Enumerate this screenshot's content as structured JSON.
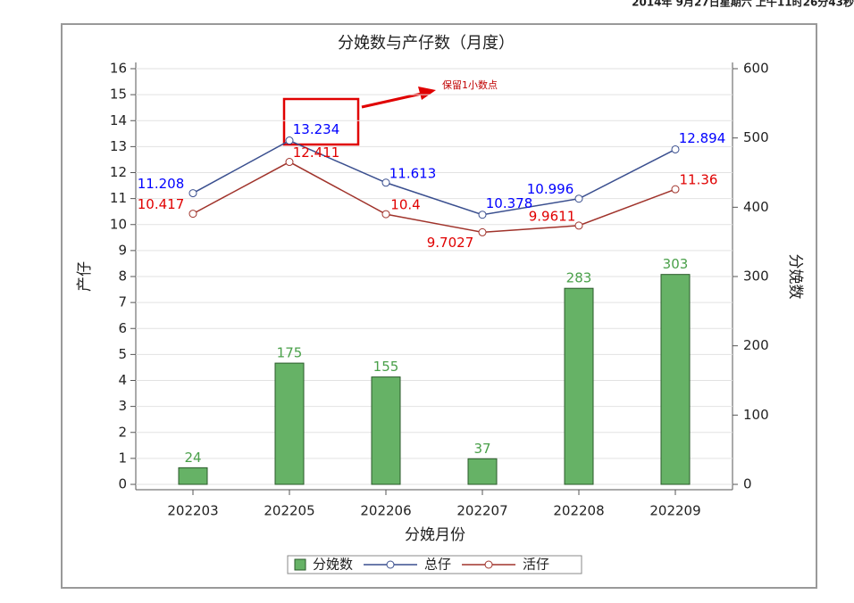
{
  "timestamp": "2014年 9月27日星期六 上午11时26分43秒",
  "chart_data": {
    "type": "combo",
    "title": "分娩数与产仔数（月度）",
    "x_label": "分娩月份",
    "y_label": "产仔",
    "y2_label": "分娩数",
    "annotations": [
      "保留1小数点"
    ],
    "categories": [
      "202203",
      "202205",
      "202206",
      "202207",
      "202208",
      "202209"
    ],
    "series": [
      {
        "name": "分娩数",
        "type": "bar",
        "axis": "y2",
        "color": "#66b266",
        "values": [
          24,
          175,
          155,
          37,
          283,
          303
        ]
      },
      {
        "name": "总仔",
        "type": "line",
        "color": "#3a4f8f",
        "label_color": "#0000ff",
        "values": [
          11.208,
          13.234,
          11.613,
          10.378,
          10.996,
          12.894
        ]
      },
      {
        "name": "活仔",
        "type": "line",
        "color": "#a0332b",
        "label_color": "#e00000",
        "values": [
          10.417,
          12.411,
          10.4,
          9.7027,
          9.9611,
          11.36
        ]
      }
    ],
    "ylim": [
      0,
      16
    ],
    "yticks": [
      0,
      1,
      2,
      3,
      4,
      5,
      6,
      7,
      8,
      9,
      10,
      11,
      12,
      13,
      14,
      15,
      16
    ],
    "y2lim": [
      0,
      600
    ],
    "y2ticks": [
      0,
      100,
      200,
      300,
      400,
      500,
      600
    ],
    "grid": true,
    "legend": "bottom"
  }
}
